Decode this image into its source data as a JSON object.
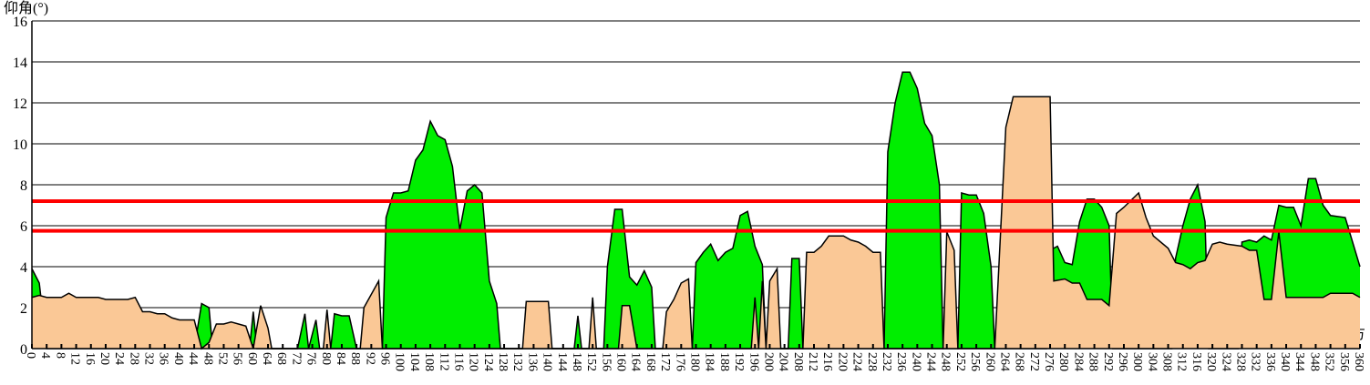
{
  "chart_data": {
    "type": "area",
    "y_label": "仰角(°)",
    "x_label": "方",
    "xlim": [
      0,
      360
    ],
    "ylim": [
      0,
      16
    ],
    "yticks": [
      0,
      2,
      4,
      6,
      8,
      10,
      12,
      14,
      16
    ],
    "xticks": [
      0,
      4,
      8,
      12,
      16,
      20,
      24,
      28,
      32,
      36,
      40,
      44,
      48,
      52,
      56,
      60,
      64,
      68,
      72,
      76,
      80,
      84,
      88,
      92,
      96,
      100,
      104,
      108,
      112,
      116,
      120,
      124,
      128,
      132,
      136,
      140,
      144,
      148,
      152,
      156,
      160,
      164,
      168,
      172,
      176,
      180,
      184,
      188,
      192,
      196,
      200,
      204,
      208,
      212,
      216,
      220,
      224,
      228,
      232,
      236,
      240,
      244,
      248,
      252,
      256,
      260,
      264,
      268,
      272,
      276,
      280,
      284,
      288,
      292,
      296,
      300,
      304,
      308,
      312,
      316,
      320,
      324,
      328,
      332,
      336,
      340,
      344,
      348,
      352,
      356,
      360
    ],
    "grid": true,
    "reference_lines": [
      {
        "value": 7.2,
        "color": "#ff0000"
      },
      {
        "value": 5.75,
        "color": "#ff0000"
      }
    ],
    "series": [
      {
        "color": "#00ee00",
        "x": [
          0,
          2,
          4,
          44,
          46,
          48,
          49,
          59,
          60,
          61,
          72,
          74,
          75,
          77,
          78,
          81,
          82,
          84,
          86,
          88,
          95,
          96,
          98,
          100,
          102,
          104,
          106,
          108,
          110,
          112,
          114,
          116,
          118,
          120,
          122,
          124,
          126,
          127,
          147,
          148,
          149,
          155,
          156,
          158,
          160,
          162,
          164,
          166,
          168,
          169,
          179,
          180,
          182,
          184,
          186,
          188,
          190,
          192,
          194,
          196,
          198,
          199,
          205,
          206,
          208,
          209,
          231,
          232,
          234,
          236,
          238,
          240,
          242,
          244,
          246,
          247,
          251,
          252,
          254,
          256,
          258,
          260,
          261,
          275,
          276,
          278,
          280,
          282,
          284,
          286,
          288,
          290,
          292,
          293,
          309,
          310,
          312,
          314,
          316,
          318,
          319,
          327,
          328,
          330,
          332,
          334,
          336,
          338,
          340,
          342,
          344,
          346,
          348,
          350,
          352,
          356,
          360
        ],
        "values": [
          3.9,
          3.2,
          0,
          0,
          2.2,
          2.0,
          0,
          0,
          1.8,
          0,
          0,
          1.7,
          0,
          1.4,
          0,
          0,
          1.7,
          1.6,
          1.6,
          0,
          0,
          6.4,
          7.6,
          7.6,
          7.7,
          9.2,
          9.7,
          11.1,
          10.4,
          10.2,
          8.9,
          5.8,
          7.7,
          8.0,
          7.6,
          3.3,
          2.2,
          0,
          0,
          1.6,
          0,
          0,
          4.0,
          6.8,
          6.8,
          3.5,
          3.1,
          3.8,
          3.0,
          0,
          0,
          4.2,
          4.7,
          5.1,
          4.3,
          4.7,
          4.9,
          6.5,
          6.7,
          5.0,
          4.1,
          0,
          0,
          4.4,
          4.4,
          0,
          0,
          9.6,
          12.0,
          13.5,
          13.5,
          12.7,
          11.0,
          10.4,
          8.0,
          0,
          0,
          7.6,
          7.5,
          7.5,
          6.6,
          4.0,
          0,
          0,
          4.8,
          5.0,
          4.2,
          4.1,
          6.2,
          7.3,
          7.3,
          6.9,
          6.0,
          0,
          0,
          4.4,
          6.0,
          7.3,
          8.0,
          6.2,
          0,
          0,
          5.2,
          5.3,
          5.2,
          5.5,
          5.3,
          7.0,
          6.9,
          6.9,
          6.0,
          8.3,
          8.3,
          7.0,
          6.5,
          6.4,
          4.0
        ]
      },
      {
        "color": "#fac896",
        "x": [
          0,
          2,
          4,
          8,
          10,
          12,
          18,
          20,
          26,
          28,
          30,
          32,
          34,
          36,
          38,
          40,
          44,
          46,
          48,
          50,
          52,
          54,
          56,
          58,
          60,
          62,
          64,
          65,
          79,
          80,
          81,
          89,
          90,
          94,
          95,
          133,
          134,
          140,
          141,
          151,
          152,
          153,
          159,
          160,
          162,
          164,
          171,
          172,
          174,
          176,
          178,
          179,
          195,
          196,
          197,
          198,
          199,
          200,
          202,
          203,
          209,
          210,
          212,
          214,
          216,
          220,
          222,
          224,
          226,
          228,
          230,
          231,
          247,
          248,
          250,
          251,
          261,
          264,
          266,
          276,
          277,
          280,
          282,
          284,
          286,
          290,
          292,
          294,
          296,
          300,
          302,
          304,
          308,
          310,
          312,
          314,
          316,
          318,
          320,
          322,
          324,
          328,
          330,
          332,
          334,
          336,
          338,
          340,
          350,
          352,
          358,
          360
        ],
        "values": [
          2.5,
          2.6,
          2.5,
          2.5,
          2.7,
          2.5,
          2.5,
          2.4,
          2.4,
          2.5,
          1.8,
          1.8,
          1.7,
          1.7,
          1.5,
          1.4,
          1.4,
          0,
          0.3,
          1.2,
          1.2,
          1.3,
          1.2,
          1.1,
          0,
          2.1,
          1.0,
          0,
          0,
          1.9,
          0,
          0,
          2.0,
          3.3,
          0,
          0,
          2.3,
          2.3,
          0,
          0,
          2.5,
          0,
          0,
          2.1,
          2.1,
          0,
          0,
          1.8,
          2.4,
          3.2,
          3.4,
          0,
          0,
          2.5,
          0,
          3.3,
          0,
          3.3,
          3.9,
          0,
          0,
          4.7,
          4.7,
          5.0,
          5.5,
          5.5,
          5.3,
          5.2,
          5.0,
          4.7,
          4.7,
          0,
          0,
          5.7,
          4.8,
          0,
          0,
          10.8,
          12.3,
          12.3,
          3.3,
          3.4,
          3.2,
          3.2,
          2.4,
          2.4,
          2.1,
          6.6,
          6.9,
          7.6,
          6.4,
          5.5,
          4.9,
          4.2,
          4.1,
          3.9,
          4.2,
          4.3,
          5.1,
          5.2,
          5.1,
          5.0,
          4.8,
          4.8,
          2.4,
          2.4,
          5.7,
          2.5,
          2.5,
          2.7,
          2.7,
          2.5
        ]
      }
    ]
  }
}
